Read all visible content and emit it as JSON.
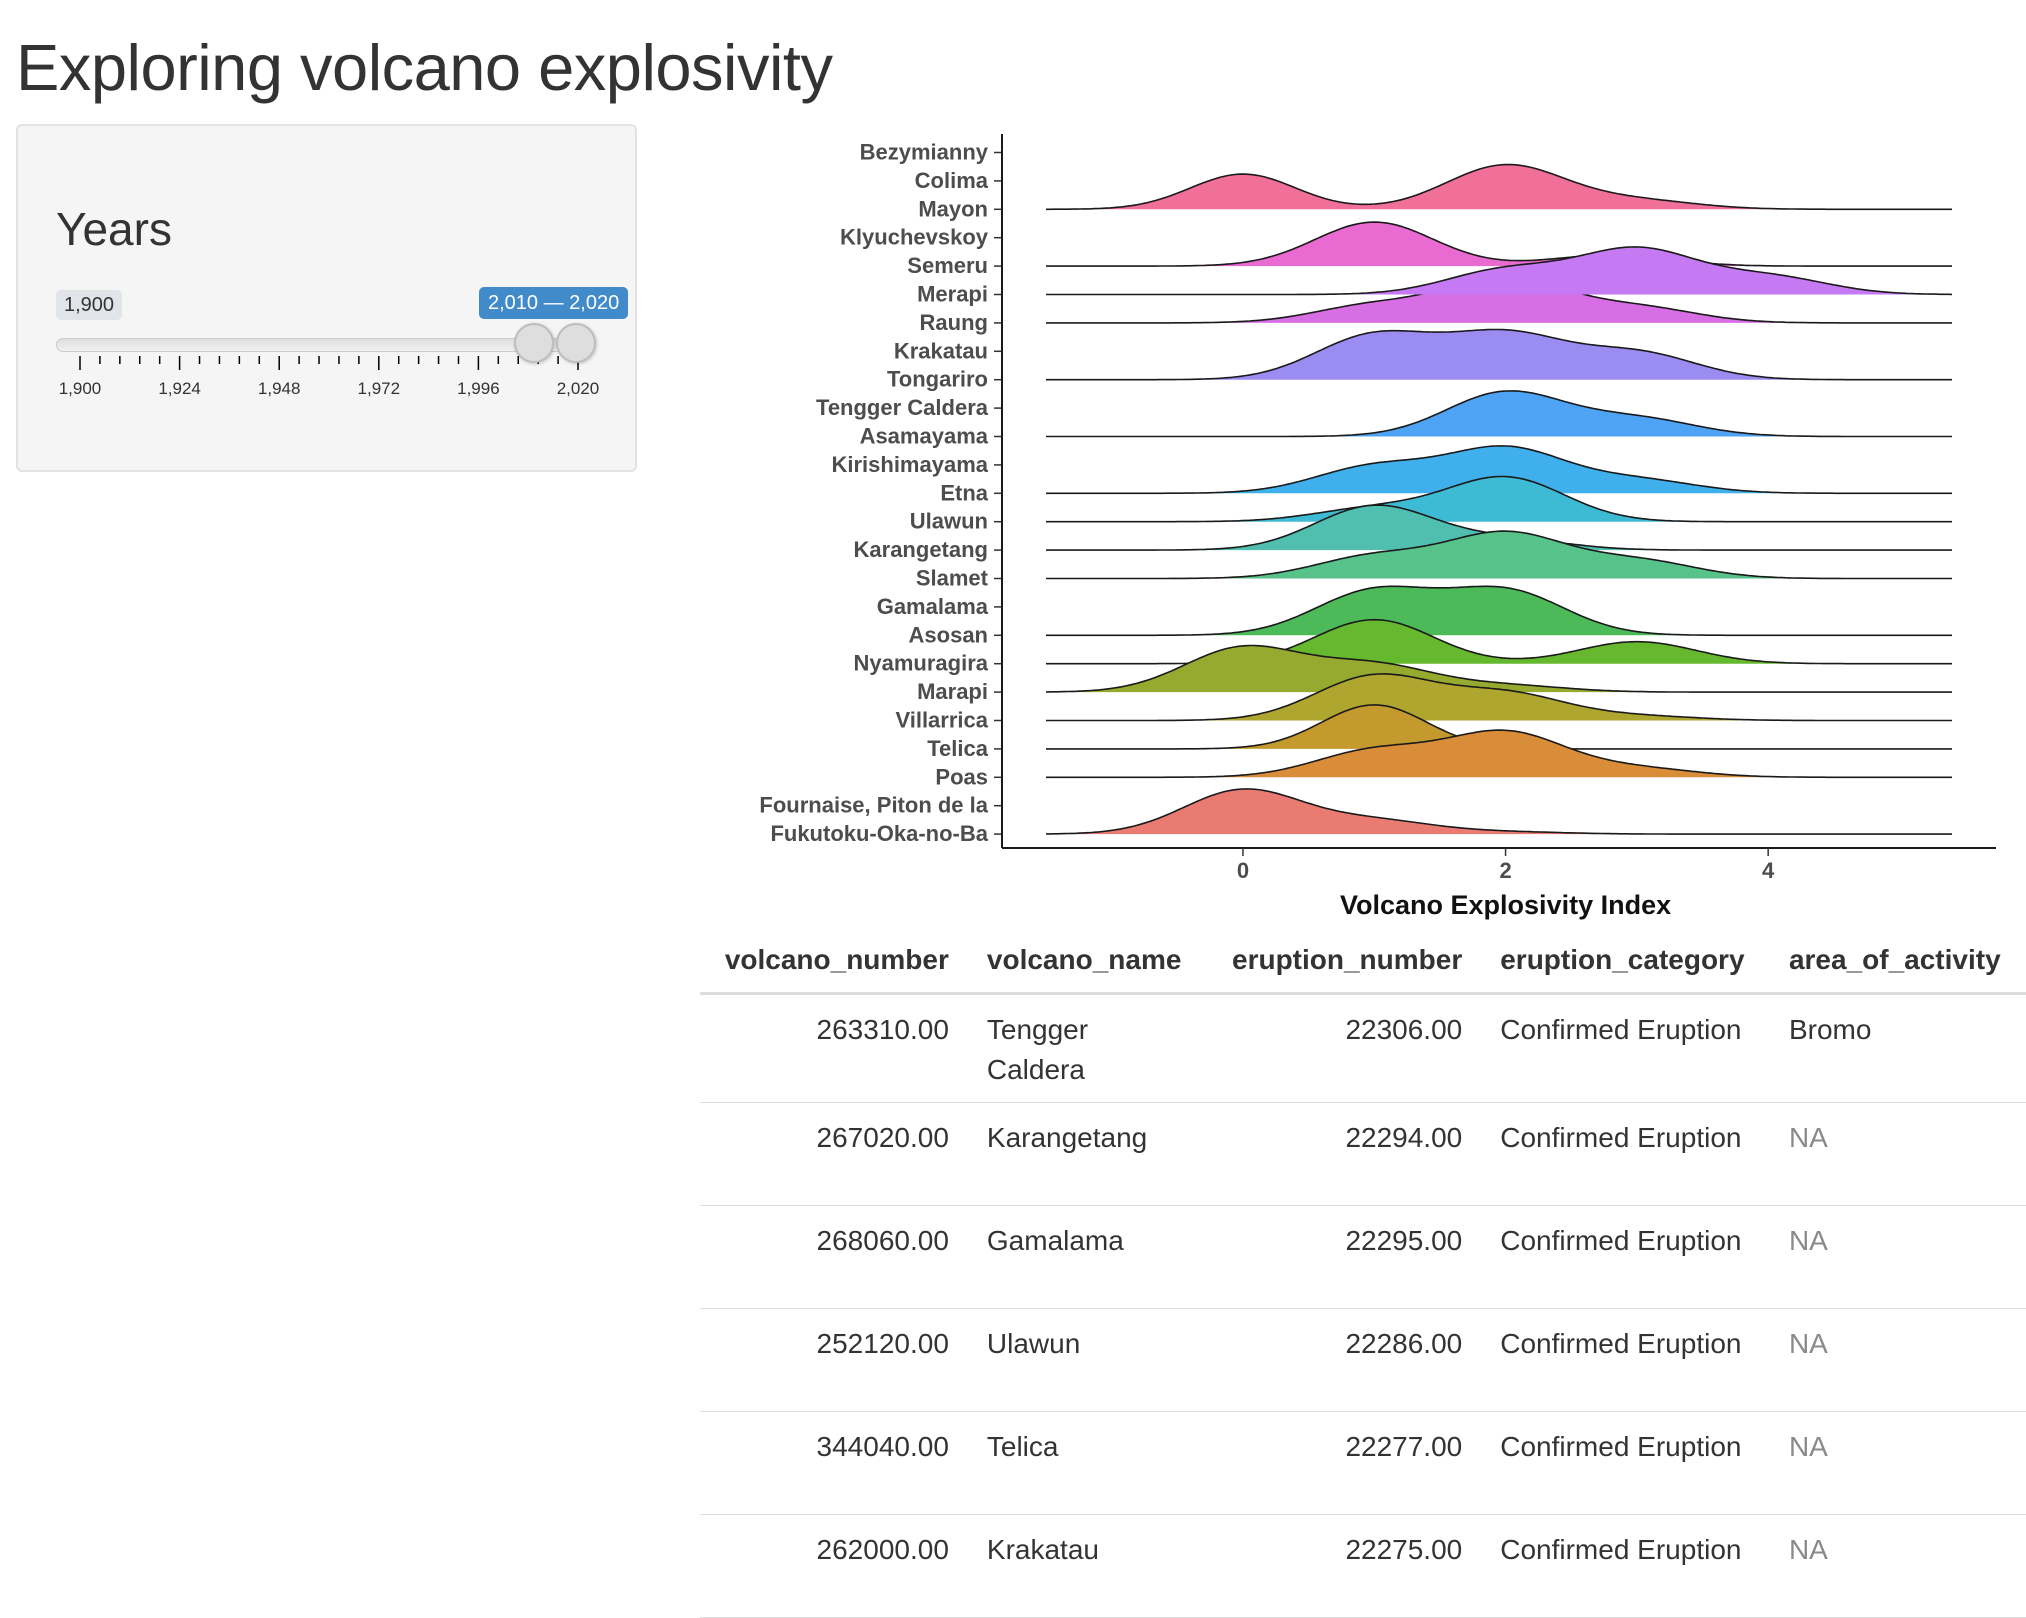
{
  "page": {
    "title": "Exploring volcano explosivity"
  },
  "sidebar": {
    "title": "Years",
    "slider": {
      "min_label": "1,900",
      "range_label": "2,010 — 2,020",
      "min": 1900,
      "max": 2020,
      "from": 2010,
      "to": 2020,
      "tick_labels": [
        "1,900",
        "1,924",
        "1,948",
        "1,972",
        "1,996",
        "2,020"
      ]
    }
  },
  "chart_data": {
    "type": "ridgeline",
    "xlabel": "Volcano Explosivity Index",
    "ylabel": "",
    "xlim": [
      -1.5,
      5.4
    ],
    "xticks": [
      0,
      2,
      4
    ],
    "categories": [
      "Bezymianny",
      "Colima",
      "Mayon",
      "Klyuchevskoy",
      "Semeru",
      "Merapi",
      "Raung",
      "Krakatau",
      "Tongariro",
      "Tengger Caldera",
      "Asamayama",
      "Kirishimayama",
      "Etna",
      "Ulawun",
      "Karangetang",
      "Slamet",
      "Gamalama",
      "Asosan",
      "Nyamuragira",
      "Marapi",
      "Villarrica",
      "Telica",
      "Poas",
      "Fournaise, Piton de la",
      "Fukutoku-Oka-no-Ba"
    ],
    "series": [
      {
        "category": "Colima",
        "color": "#f0709a",
        "peaks": [
          [
            0,
            0.4,
            0.8
          ],
          [
            2,
            0.45,
            1.0
          ],
          [
            3,
            0.45,
            0.2
          ]
        ]
      },
      {
        "category": "Klyuchevskoy",
        "color": "#e96ad0",
        "peaks": [
          [
            1,
            0.45,
            1.0
          ],
          [
            2.8,
            0.45,
            0.25
          ]
        ]
      },
      {
        "category": "Merapi",
        "color": "#d76ee4",
        "peaks": [
          [
            1,
            0.45,
            0.4
          ],
          [
            2,
            0.45,
            1.0
          ],
          [
            3,
            0.45,
            0.35
          ]
        ]
      },
      {
        "category": "Semeru",
        "color": "#c57af4",
        "peaks": [
          [
            2,
            0.45,
            0.55
          ],
          [
            3,
            0.45,
            1.0
          ],
          [
            4,
            0.45,
            0.4
          ]
        ]
      },
      {
        "category": "Krakatau",
        "color": "#9b8cf2",
        "peaks": [
          [
            1,
            0.45,
            1.0
          ],
          [
            2,
            0.45,
            1.0
          ],
          [
            3,
            0.45,
            0.6
          ]
        ]
      },
      {
        "category": "Tengger Caldera",
        "color": "#4ea3f5",
        "peaks": [
          [
            2,
            0.45,
            1.0
          ],
          [
            3,
            0.45,
            0.4
          ]
        ]
      },
      {
        "category": "Kirishimayama",
        "color": "#3fb0ec",
        "peaks": [
          [
            1,
            0.45,
            0.6
          ],
          [
            2,
            0.45,
            1.0
          ],
          [
            3,
            0.45,
            0.3
          ]
        ]
      },
      {
        "category": "Etna",
        "color": "#3ebbd4",
        "peaks": [
          [
            1,
            0.45,
            0.3
          ],
          [
            2,
            0.45,
            1.0
          ]
        ]
      },
      {
        "category": "Ulawun",
        "color": "#50bfb0",
        "peaks": [
          [
            1,
            0.45,
            1.0
          ],
          [
            2,
            0.45,
            0.25
          ]
        ]
      },
      {
        "category": "Karangetang",
        "color": "#57c28a",
        "peaks": [
          [
            1,
            0.45,
            0.5
          ],
          [
            2,
            0.45,
            1.0
          ],
          [
            3,
            0.45,
            0.4
          ]
        ]
      },
      {
        "category": "Gamalama",
        "color": "#4cba58",
        "peaks": [
          [
            1,
            0.45,
            1.0
          ],
          [
            2,
            0.45,
            1.0
          ]
        ]
      },
      {
        "category": "Asosan",
        "color": "#66b82e",
        "peaks": [
          [
            1,
            0.45,
            1.0
          ],
          [
            3,
            0.45,
            0.5
          ]
        ]
      },
      {
        "category": "Nyamuragira",
        "color": "#95aa2e",
        "peaks": [
          [
            0,
            0.45,
            1.0
          ],
          [
            1,
            0.45,
            0.6
          ],
          [
            2,
            0.45,
            0.15
          ]
        ]
      },
      {
        "category": "Marapi",
        "color": "#aea62e",
        "peaks": [
          [
            1,
            0.45,
            1.0
          ],
          [
            2,
            0.45,
            0.6
          ],
          [
            3,
            0.45,
            0.1
          ]
        ]
      },
      {
        "category": "Villarrica",
        "color": "#c49a2e",
        "peaks": [
          [
            1,
            0.4,
            1.0
          ]
        ]
      },
      {
        "category": "Telica",
        "color": "#d98d39",
        "peaks": [
          [
            1,
            0.45,
            0.6
          ],
          [
            2,
            0.45,
            1.0
          ],
          [
            3,
            0.45,
            0.2
          ]
        ]
      },
      {
        "category": "Fournaise, Piton de la",
        "color": "#ea7b73",
        "peaks": [
          [
            0,
            0.45,
            1.0
          ],
          [
            1,
            0.45,
            0.3
          ],
          [
            2,
            0.45,
            0.05
          ]
        ]
      }
    ]
  },
  "table": {
    "columns": [
      {
        "label": "volcano_number",
        "align": "num"
      },
      {
        "label": "volcano_name",
        "align": "text"
      },
      {
        "label": "eruption_number",
        "align": "num"
      },
      {
        "label": "eruption_category",
        "align": "text"
      },
      {
        "label": "area_of_activity",
        "align": "text"
      }
    ],
    "rows": [
      [
        "263310.00",
        "Tengger Caldera",
        "22306.00",
        "Confirmed Eruption",
        "Bromo"
      ],
      [
        "267020.00",
        "Karangetang",
        "22294.00",
        "Confirmed Eruption",
        "NA"
      ],
      [
        "268060.00",
        "Gamalama",
        "22295.00",
        "Confirmed Eruption",
        "NA"
      ],
      [
        "252120.00",
        "Ulawun",
        "22286.00",
        "Confirmed Eruption",
        "NA"
      ],
      [
        "344040.00",
        "Telica",
        "22277.00",
        "Confirmed Eruption",
        "NA"
      ],
      [
        "262000.00",
        "Krakatau",
        "22275.00",
        "Confirmed Eruption",
        "NA"
      ]
    ]
  }
}
